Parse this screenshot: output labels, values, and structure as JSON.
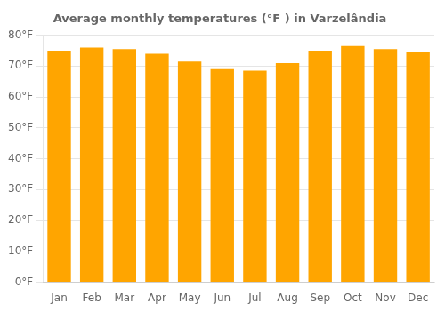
{
  "chart_data": {
    "type": "bar",
    "title": "Average monthly temperatures (°F ) in Varzelândia",
    "categories": [
      "Jan",
      "Feb",
      "Mar",
      "Apr",
      "May",
      "Jun",
      "Jul",
      "Aug",
      "Sep",
      "Oct",
      "Nov",
      "Dec"
    ],
    "values": [
      75,
      76,
      75.5,
      74,
      71.5,
      69,
      68.5,
      71,
      75,
      76.5,
      75.5,
      74.5
    ],
    "color": "#FFA500",
    "ylim": [
      0,
      80
    ],
    "yticks": [
      {
        "value": 0,
        "label": "0°F"
      },
      {
        "value": 10,
        "label": "10°F"
      },
      {
        "value": 20,
        "label": "20°F"
      },
      {
        "value": 30,
        "label": "30°F"
      },
      {
        "value": 40,
        "label": "40°F"
      },
      {
        "value": 50,
        "label": "50°F"
      },
      {
        "value": 60,
        "label": "60°F"
      },
      {
        "value": 70,
        "label": "70°F"
      },
      {
        "value": 80,
        "label": "80°F"
      }
    ],
    "grid": true
  }
}
